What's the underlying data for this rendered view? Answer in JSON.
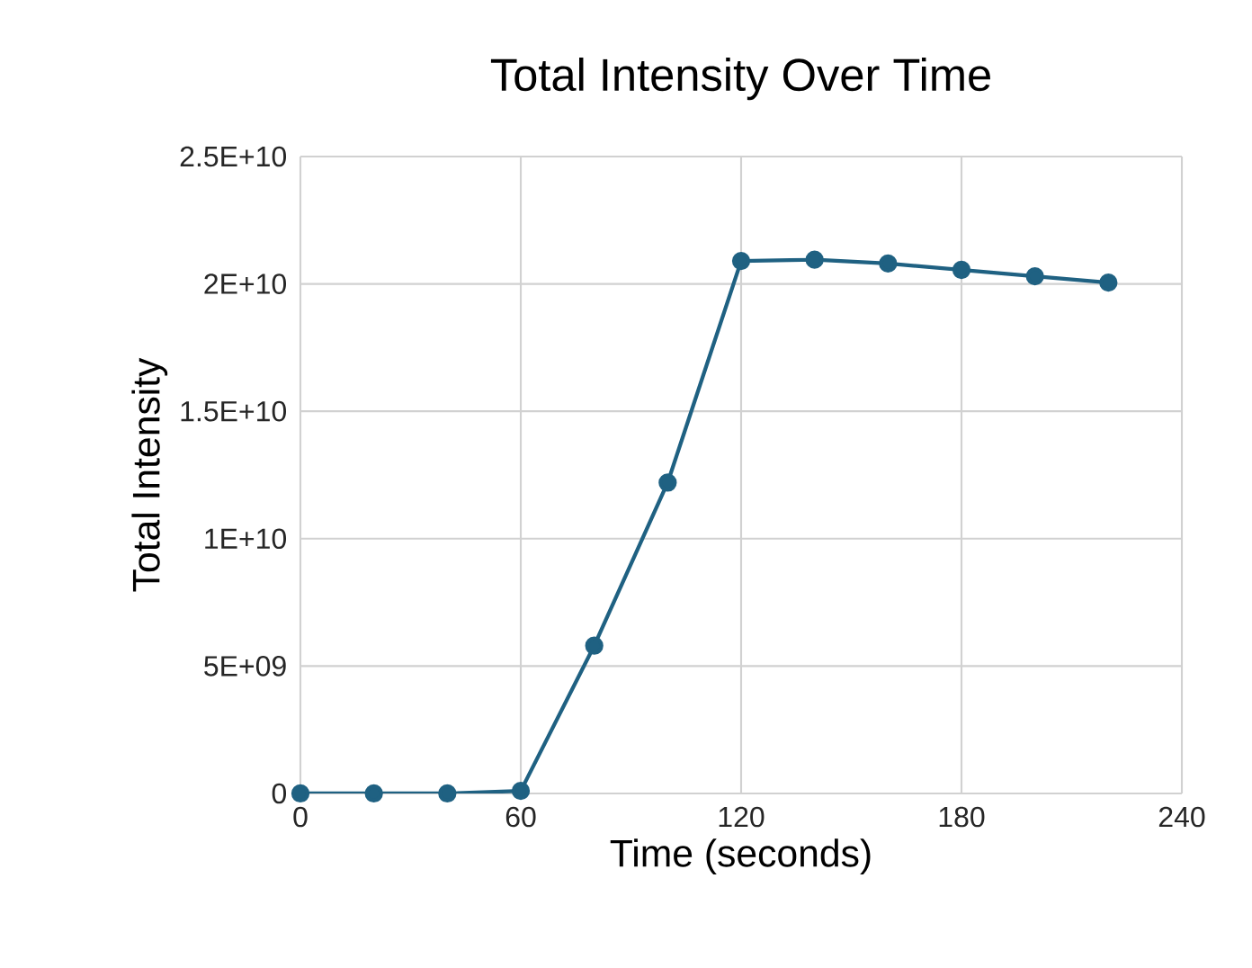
{
  "chart_data": {
    "type": "line",
    "title": "Total Intensity Over Time",
    "xlabel": "Time (seconds)",
    "ylabel": "Total Intensity",
    "x": [
      0,
      20,
      40,
      60,
      80,
      100,
      120,
      140,
      160,
      180,
      200,
      220
    ],
    "series": [
      {
        "color": "#1f6182",
        "values": [
          0,
          0,
          0,
          100000000,
          5800000000,
          12200000000,
          20900000000,
          20950000000,
          20800000000,
          20550000000,
          20300000000,
          20050000000
        ]
      }
    ],
    "xlim": [
      0,
      240
    ],
    "xticks": [
      0,
      60,
      120,
      180,
      240
    ],
    "ylim": [
      0,
      25000000000
    ],
    "yticks": [
      {
        "value": 0,
        "label": "0"
      },
      {
        "value": 5000000000,
        "label": "5E+09"
      },
      {
        "value": 10000000000,
        "label": "1E+10"
      },
      {
        "value": 15000000000,
        "label": "1.5E+10"
      },
      {
        "value": 20000000000,
        "label": "2E+10"
      },
      {
        "value": 25000000000,
        "label": "2.5E+10"
      }
    ],
    "grid": true,
    "marker": "circle",
    "line_style": "solid"
  }
}
